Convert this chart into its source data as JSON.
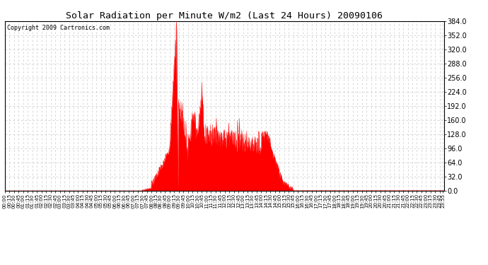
{
  "title": "Solar Radiation per Minute W/m2 (Last 24 Hours) 20090106",
  "copyright": "Copyright 2009 Cartronics.com",
  "bg_color": "#ffffff",
  "fill_color": "#ff0000",
  "line_color": "#ff0000",
  "baseline_color": "#ff0000",
  "grid_color": "#c8c8c8",
  "ymin": 0.0,
  "ymax": 384.0,
  "ytick_step": 32.0,
  "num_minutes": 1440,
  "figwidth": 6.9,
  "figheight": 3.75,
  "dpi": 100
}
